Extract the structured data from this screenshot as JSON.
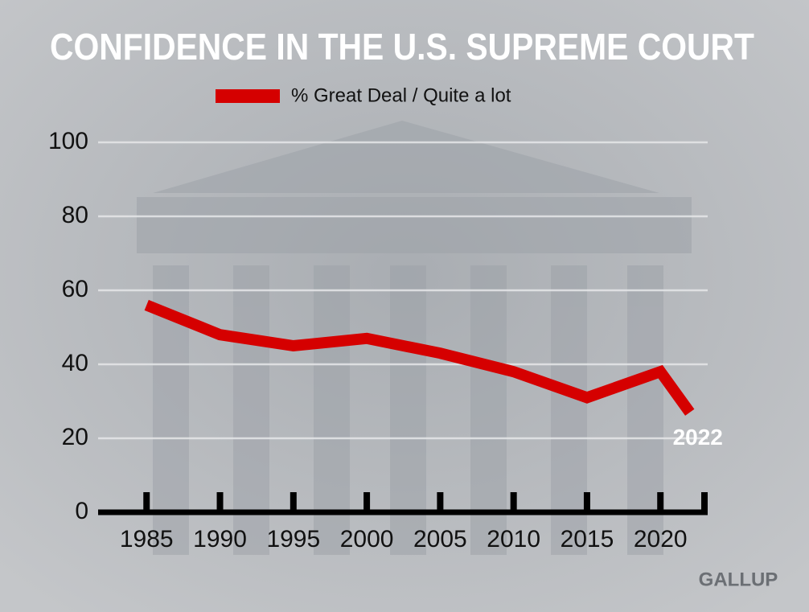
{
  "chart_data": {
    "type": "line",
    "title": "CONFIDENCE IN THE U.S. SUPREME COURT",
    "x": [
      1985,
      1990,
      1995,
      2000,
      2005,
      2010,
      2015,
      2020,
      2022
    ],
    "series": [
      {
        "name": "% Great Deal / Quite a lot",
        "color": "#d50000",
        "values": [
          56,
          48,
          45,
          47,
          43,
          38,
          31,
          38,
          27
        ]
      }
    ],
    "xlim": [
      1981.7,
      2023
    ],
    "xticks": [
      1985,
      1990,
      1995,
      2000,
      2005,
      2010,
      2015,
      2020
    ],
    "ylim": [
      0,
      100
    ],
    "yticks": [
      0,
      20,
      40,
      60,
      80,
      100
    ],
    "grid": true,
    "annotation": "2022",
    "source": "GALLUP"
  }
}
